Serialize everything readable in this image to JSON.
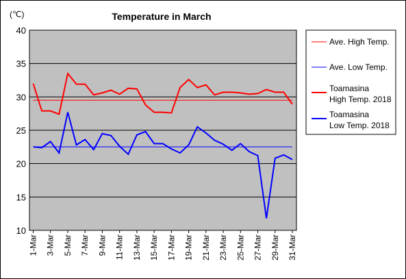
{
  "chart_data": {
    "type": "line",
    "title": "Temperature in March",
    "unit_label": "(℃)",
    "ylim": [
      10,
      40
    ],
    "yticks": [
      10,
      15,
      20,
      25,
      30,
      35,
      40
    ],
    "grid": true,
    "legend_position": "right",
    "categories": [
      "1-Mar",
      "2-Mar",
      "3-Mar",
      "4-Mar",
      "5-Mar",
      "6-Mar",
      "7-Mar",
      "8-Mar",
      "9-Mar",
      "10-Mar",
      "11-Mar",
      "12-Mar",
      "13-Mar",
      "14-Mar",
      "15-Mar",
      "16-Mar",
      "17-Mar",
      "18-Mar",
      "19-Mar",
      "20-Mar",
      "21-Mar",
      "22-Mar",
      "23-Mar",
      "24-Mar",
      "25-Mar",
      "26-Mar",
      "27-Mar",
      "28-Mar",
      "29-Mar",
      "30-Mar",
      "31-Mar"
    ],
    "x_tick_labels": [
      "1-Mar",
      "3-Mar",
      "5-Mar",
      "7-Mar",
      "9-Mar",
      "11-Mar",
      "13-Mar",
      "15-Mar",
      "17-Mar",
      "19-Mar",
      "21-Mar",
      "23-Mar",
      "25-Mar",
      "27-Mar",
      "29-Mar",
      "31-Mar"
    ],
    "series": [
      {
        "name": "Ave. High Temp.",
        "color": "#ff0000",
        "style": "thin",
        "values": [
          29.5,
          29.5,
          29.5,
          29.5,
          29.5,
          29.5,
          29.5,
          29.5,
          29.5,
          29.5,
          29.5,
          29.5,
          29.5,
          29.5,
          29.5,
          29.5,
          29.5,
          29.5,
          29.5,
          29.5,
          29.5,
          29.5,
          29.5,
          29.5,
          29.5,
          29.5,
          29.5,
          29.5,
          29.5,
          29.5,
          29.5
        ]
      },
      {
        "name": "Ave. Low Temp.",
        "color": "#0000ff",
        "style": "thin",
        "values": [
          22.5,
          22.5,
          22.5,
          22.5,
          22.5,
          22.5,
          22.5,
          22.5,
          22.5,
          22.5,
          22.5,
          22.5,
          22.5,
          22.5,
          22.5,
          22.5,
          22.5,
          22.5,
          22.5,
          22.5,
          22.5,
          22.5,
          22.5,
          22.5,
          22.5,
          22.5,
          22.5,
          22.5,
          22.5,
          22.5,
          22.5
        ]
      },
      {
        "name": "Toamasina\nHigh Temp. 2018",
        "color": "#ff0000",
        "style": "thick",
        "values": [
          32.0,
          27.9,
          27.9,
          27.4,
          33.5,
          31.9,
          31.9,
          30.3,
          30.6,
          31.0,
          30.4,
          31.3,
          31.2,
          28.8,
          27.7,
          27.7,
          27.6,
          31.4,
          32.6,
          31.4,
          31.8,
          30.3,
          30.7,
          30.7,
          30.6,
          30.4,
          30.5,
          31.1,
          30.7,
          30.7,
          28.9
        ]
      },
      {
        "name": "Toamasina\nLow Temp. 2018",
        "color": "#0000ff",
        "style": "thick",
        "values": [
          22.5,
          22.4,
          23.3,
          21.6,
          27.7,
          22.8,
          23.6,
          22.1,
          24.5,
          24.2,
          22.6,
          21.4,
          24.3,
          24.8,
          23.0,
          23.0,
          22.2,
          21.6,
          22.8,
          25.5,
          24.6,
          23.5,
          22.9,
          22.0,
          23.0,
          21.8,
          21.2,
          11.8,
          20.8,
          21.3,
          20.6
        ]
      }
    ]
  }
}
